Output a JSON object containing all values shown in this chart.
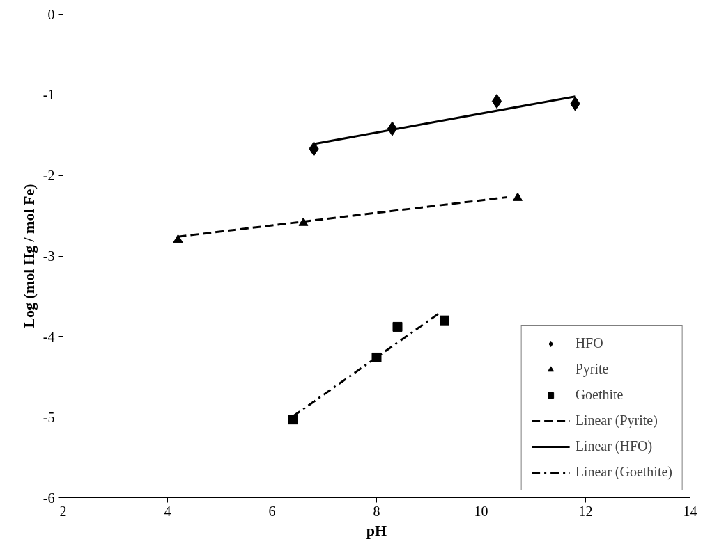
{
  "chart_data": {
    "type": "scatter",
    "xlabel": "pH",
    "ylabel": "Log (mol Hg / mol Fe)",
    "xlim": [
      2,
      14
    ],
    "xticks": [
      2,
      4,
      6,
      8,
      10,
      12,
      14
    ],
    "ylim": [
      -6,
      0
    ],
    "yticks": [
      -6,
      -5,
      -4,
      -3,
      -2,
      -1,
      0
    ],
    "grid": false,
    "legend": "bottom right",
    "series": [
      {
        "name": "HFO",
        "marker": "diamond",
        "color": "#000000",
        "x": [
          6.8,
          8.3,
          10.3,
          11.8
        ],
        "values": [
          -1.67,
          -1.42,
          -1.08,
          -1.11
        ]
      },
      {
        "name": "Pyrite",
        "marker": "triangle",
        "color": "#000000",
        "x": [
          4.2,
          6.6,
          10.7
        ],
        "values": [
          -2.8,
          -2.59,
          -2.28
        ]
      },
      {
        "name": "Goethite",
        "marker": "square",
        "color": "#000000",
        "x": [
          6.4,
          8.0,
          8.4,
          9.3
        ],
        "values": [
          -5.03,
          -4.26,
          -3.88,
          -3.8
        ]
      },
      {
        "name": "Linear (Pyrite)",
        "type": "line",
        "line_style": "dashed",
        "color": "#000000",
        "x": [
          4.2,
          10.5
        ],
        "values": [
          -2.76,
          -2.27
        ]
      },
      {
        "name": "Linear (HFO)",
        "type": "line",
        "line_style": "solid",
        "color": "#000000",
        "x": [
          6.8,
          11.8
        ],
        "values": [
          -1.61,
          -1.02
        ]
      },
      {
        "name": "Linear (Goethite)",
        "type": "line",
        "line_style": "dashdot",
        "color": "#000000",
        "x": [
          6.4,
          9.2
        ],
        "values": [
          -4.99,
          -3.71
        ]
      }
    ]
  }
}
